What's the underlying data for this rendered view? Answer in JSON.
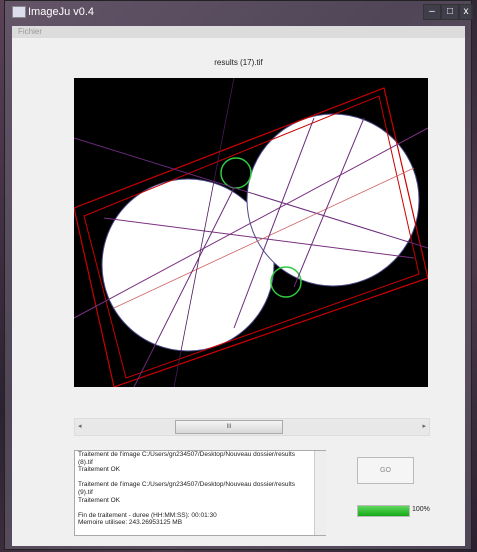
{
  "window": {
    "title": "ImageJu v0.4",
    "menu": [
      "Fichier"
    ]
  },
  "image": {
    "title": "results (17).tif"
  },
  "scrollbar": {
    "thumb_label": "III"
  },
  "log": [
    [
      "Traitement de l'image C:/Users/gn234507/Desktop/Nouveau dossier/results",
      "(8).tif",
      "Traitement OK"
    ],
    [
      "Traitement de l'image C:/Users/gn234507/Desktop/Nouveau dossier/results",
      "(9).tif",
      "Traitement OK"
    ],
    [
      "Fin de traitement - duree (HH:MM:SS): 00:01:30",
      "Memoire utilisee: 243.26953125 MB"
    ]
  ],
  "go_button": "GO",
  "progress": {
    "value": 100,
    "label": "100%"
  }
}
